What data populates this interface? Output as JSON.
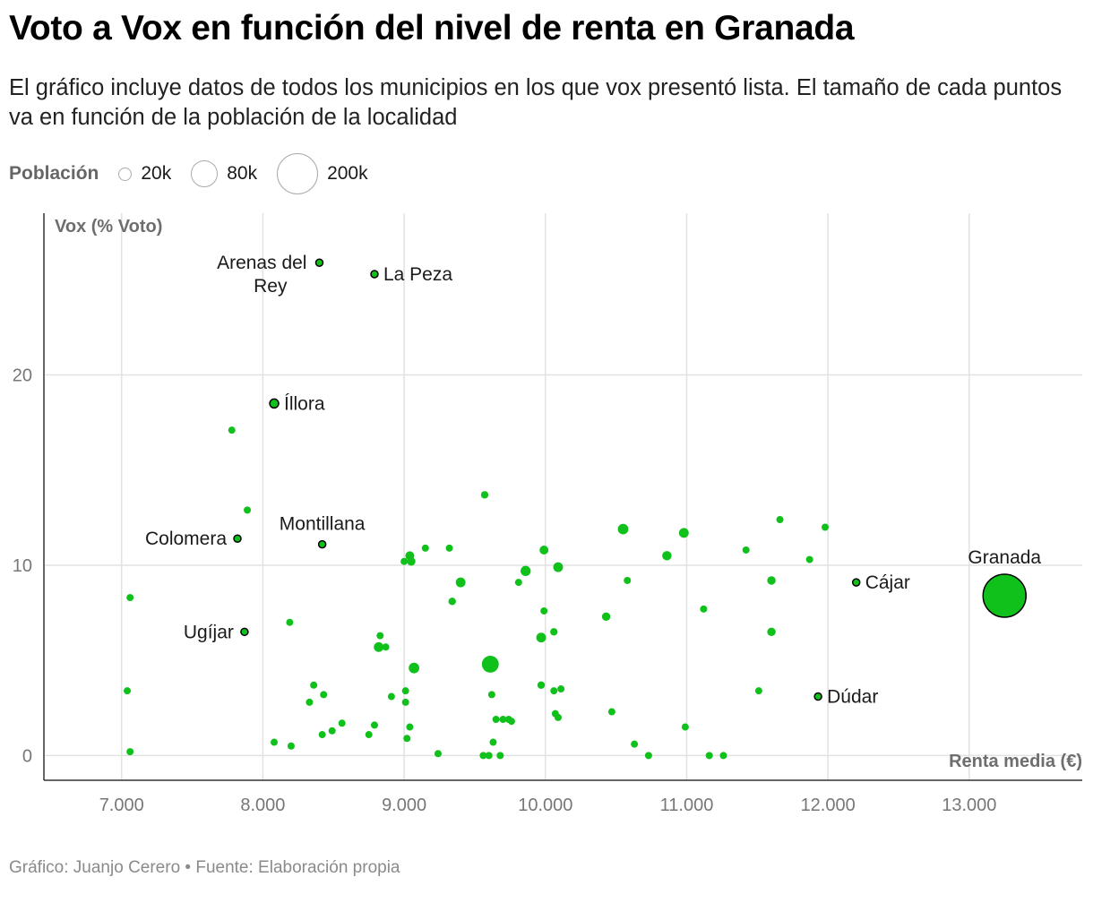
{
  "title": "Voto a Vox en función del nivel de renta en Granada",
  "subtitle": "El gráfico incluye datos de todos los municipios en los que vox presentó lista. El tamaño de cada puntos va en función de la población de la localidad",
  "size_legend": {
    "title": "Población",
    "items": [
      {
        "label": "20k",
        "value": 20000
      },
      {
        "label": "80k",
        "value": 80000
      },
      {
        "label": "200k",
        "value": 200000
      }
    ]
  },
  "footer": "Gráfico: Juanjo Cerero • Fuente: Elaboración propia",
  "colors": {
    "point": "#11c11b",
    "point_outline": "#000000",
    "grid": "#e2e2e2",
    "axis": "#333333",
    "tick": "#777777",
    "axis_label": "#6e6e6e"
  },
  "chart_data": {
    "type": "scatter",
    "title": "Voto a Vox en función del nivel de renta en Granada",
    "xlabel": "Renta media (€)",
    "ylabel": "Vox (% Voto)",
    "xlim": [
      6450,
      13800
    ],
    "ylim": [
      -1.3,
      28.5
    ],
    "grid": true,
    "x_ticks": [
      7000,
      8000,
      9000,
      10000,
      11000,
      12000,
      13000
    ],
    "x_tick_labels": [
      "7.000",
      "8.000",
      "9.000",
      "10.000",
      "11.000",
      "12.000",
      "13.000"
    ],
    "y_ticks": [
      0,
      10,
      20
    ],
    "y_tick_labels": [
      "0",
      "10",
      "20"
    ],
    "labeled_points": [
      {
        "name": "Arenas del Rey",
        "label_lines": [
          "Arenas del",
          "Rey"
        ],
        "x": 8400,
        "y": 25.9,
        "pop": 1900,
        "label_pos": "left-below"
      },
      {
        "name": "La Peza",
        "label_lines": [
          "La Peza"
        ],
        "x": 8790,
        "y": 25.3,
        "pop": 1200,
        "label_pos": "right"
      },
      {
        "name": "Íllora",
        "label_lines": [
          "Íllora"
        ],
        "x": 8080,
        "y": 18.5,
        "pop": 10000,
        "label_pos": "right"
      },
      {
        "name": "Colomera",
        "label_lines": [
          "Colomera"
        ],
        "x": 7820,
        "y": 11.4,
        "pop": 1300,
        "label_pos": "left"
      },
      {
        "name": "Montillana",
        "label_lines": [
          "Montillana"
        ],
        "x": 8420,
        "y": 11.1,
        "pop": 1200,
        "label_pos": "above"
      },
      {
        "name": "Ugíjar",
        "label_lines": [
          "Ugíjar"
        ],
        "x": 7870,
        "y": 6.5,
        "pop": 2500,
        "label_pos": "left"
      },
      {
        "name": "Cájar",
        "label_lines": [
          "Cájar"
        ],
        "x": 12200,
        "y": 9.1,
        "pop": 5000,
        "label_pos": "right"
      },
      {
        "name": "Dúdar",
        "label_lines": [
          "Dúdar"
        ],
        "x": 11930,
        "y": 3.1,
        "pop": 300,
        "label_pos": "right"
      },
      {
        "name": "Granada",
        "label_lines": [
          "Granada"
        ],
        "x": 13250,
        "y": 8.4,
        "pop": 232000,
        "label_pos": "above"
      }
    ],
    "points": [
      {
        "x": 7780,
        "y": 17.1,
        "pop": 700
      },
      {
        "x": 7890,
        "y": 12.9,
        "pop": 5000
      },
      {
        "x": 7060,
        "y": 8.3,
        "pop": 4500
      },
      {
        "x": 7040,
        "y": 3.4,
        "pop": 4500
      },
      {
        "x": 7060,
        "y": 0.2,
        "pop": 2000
      },
      {
        "x": 8190,
        "y": 7.0,
        "pop": 4000
      },
      {
        "x": 8080,
        "y": 0.7,
        "pop": 3500
      },
      {
        "x": 8200,
        "y": 0.5,
        "pop": 4000
      },
      {
        "x": 8330,
        "y": 2.8,
        "pop": 3000
      },
      {
        "x": 8360,
        "y": 3.7,
        "pop": 5000
      },
      {
        "x": 8430,
        "y": 3.2,
        "pop": 2500
      },
      {
        "x": 8420,
        "y": 1.1,
        "pop": 2500
      },
      {
        "x": 8490,
        "y": 1.3,
        "pop": 2500
      },
      {
        "x": 8560,
        "y": 1.7,
        "pop": 4000
      },
      {
        "x": 8750,
        "y": 1.1,
        "pop": 3000
      },
      {
        "x": 8790,
        "y": 1.6,
        "pop": 5000
      },
      {
        "x": 8830,
        "y": 6.3,
        "pop": 3000
      },
      {
        "x": 8820,
        "y": 5.7,
        "pop": 12000
      },
      {
        "x": 8870,
        "y": 5.7,
        "pop": 6000
      },
      {
        "x": 8910,
        "y": 3.1,
        "pop": 4000
      },
      {
        "x": 9000,
        "y": 10.2,
        "pop": 4000
      },
      {
        "x": 9040,
        "y": 10.5,
        "pop": 10000
      },
      {
        "x": 9050,
        "y": 10.2,
        "pop": 9000
      },
      {
        "x": 9150,
        "y": 10.9,
        "pop": 2000
      },
      {
        "x": 9010,
        "y": 3.4,
        "pop": 3500
      },
      {
        "x": 9010,
        "y": 2.8,
        "pop": 4000
      },
      {
        "x": 9040,
        "y": 1.5,
        "pop": 2500
      },
      {
        "x": 9020,
        "y": 0.9,
        "pop": 3500
      },
      {
        "x": 9070,
        "y": 4.6,
        "pop": 14000
      },
      {
        "x": 9240,
        "y": 0.1,
        "pop": 2500
      },
      {
        "x": 9320,
        "y": 10.9,
        "pop": 2000
      },
      {
        "x": 9340,
        "y": 8.1,
        "pop": 7000
      },
      {
        "x": 9400,
        "y": 9.1,
        "pop": 12000
      },
      {
        "x": 9570,
        "y": 13.7,
        "pop": 7000
      },
      {
        "x": 9610,
        "y": 4.8,
        "pop": 36000
      },
      {
        "x": 9620,
        "y": 3.2,
        "pop": 5000
      },
      {
        "x": 9630,
        "y": 0.7,
        "pop": 2500
      },
      {
        "x": 9650,
        "y": 1.9,
        "pop": 2500
      },
      {
        "x": 9700,
        "y": 1.9,
        "pop": 2500
      },
      {
        "x": 9740,
        "y": 1.9,
        "pop": 3000
      },
      {
        "x": 9760,
        "y": 1.8,
        "pop": 5000
      },
      {
        "x": 9560,
        "y": 0.0,
        "pop": 2000
      },
      {
        "x": 9600,
        "y": 0.0,
        "pop": 2000
      },
      {
        "x": 9680,
        "y": 0.0,
        "pop": 2000
      },
      {
        "x": 9810,
        "y": 9.1,
        "pop": 6000
      },
      {
        "x": 9860,
        "y": 9.7,
        "pop": 13000
      },
      {
        "x": 9990,
        "y": 10.8,
        "pop": 10000
      },
      {
        "x": 9990,
        "y": 7.6,
        "pop": 6000
      },
      {
        "x": 9970,
        "y": 6.2,
        "pop": 12000
      },
      {
        "x": 10060,
        "y": 6.5,
        "pop": 7000
      },
      {
        "x": 9970,
        "y": 3.7,
        "pop": 7000
      },
      {
        "x": 10060,
        "y": 3.4,
        "pop": 3000
      },
      {
        "x": 10110,
        "y": 3.5,
        "pop": 5000
      },
      {
        "x": 10070,
        "y": 2.2,
        "pop": 3000
      },
      {
        "x": 10090,
        "y": 2.0,
        "pop": 3000
      },
      {
        "x": 10090,
        "y": 9.9,
        "pop": 12000
      },
      {
        "x": 10430,
        "y": 7.3,
        "pop": 9000
      },
      {
        "x": 10470,
        "y": 2.3,
        "pop": 3000
      },
      {
        "x": 10550,
        "y": 11.9,
        "pop": 14000
      },
      {
        "x": 10580,
        "y": 9.2,
        "pop": 3500
      },
      {
        "x": 10630,
        "y": 0.6,
        "pop": 3000
      },
      {
        "x": 10730,
        "y": 0.0,
        "pop": 2000
      },
      {
        "x": 10860,
        "y": 10.5,
        "pop": 11000
      },
      {
        "x": 10980,
        "y": 11.7,
        "pop": 12000
      },
      {
        "x": 10990,
        "y": 1.5,
        "pop": 3000
      },
      {
        "x": 11120,
        "y": 7.7,
        "pop": 6000
      },
      {
        "x": 11160,
        "y": 0.0,
        "pop": 2000
      },
      {
        "x": 11260,
        "y": 0.0,
        "pop": 2000
      },
      {
        "x": 11420,
        "y": 10.8,
        "pop": 5000
      },
      {
        "x": 11510,
        "y": 3.4,
        "pop": 2500
      },
      {
        "x": 11600,
        "y": 9.2,
        "pop": 9000
      },
      {
        "x": 11600,
        "y": 6.5,
        "pop": 9000
      },
      {
        "x": 11660,
        "y": 12.4,
        "pop": 2500
      },
      {
        "x": 11870,
        "y": 10.3,
        "pop": 6000
      },
      {
        "x": 11980,
        "y": 12.0,
        "pop": 2500
      }
    ]
  }
}
